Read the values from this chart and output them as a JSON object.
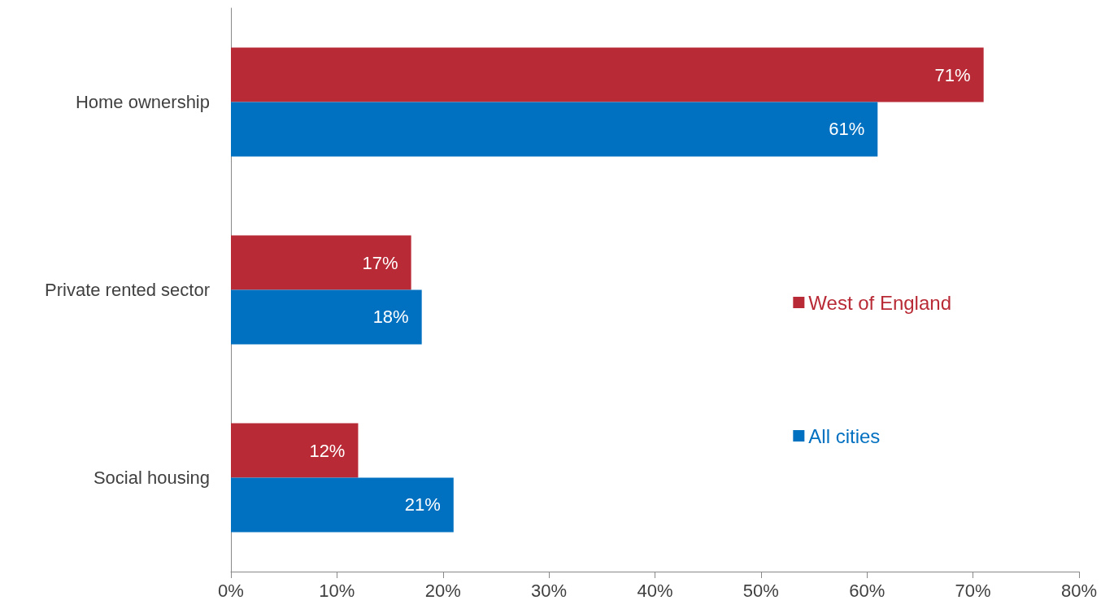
{
  "chart_data": {
    "type": "bar",
    "orientation": "horizontal",
    "categories": [
      "Home ownership",
      "Private rented sector",
      "Social housing"
    ],
    "series": [
      {
        "name": "West of England",
        "color": "#b82a35",
        "values": [
          71,
          17,
          12
        ],
        "value_labels": [
          "71%",
          "17%",
          "12%"
        ]
      },
      {
        "name": "All cities",
        "color": "#0070c0",
        "values": [
          61,
          18,
          21
        ],
        "value_labels": [
          "61%",
          "18%",
          "21%"
        ]
      }
    ],
    "xlim": [
      0,
      80
    ],
    "xticks": [
      {
        "value": 0,
        "label": "0%"
      },
      {
        "value": 10,
        "label": "10%"
      },
      {
        "value": 20,
        "label": "20%"
      },
      {
        "value": 30,
        "label": "30%"
      },
      {
        "value": 40,
        "label": "40%"
      },
      {
        "value": 50,
        "label": "50%"
      },
      {
        "value": 60,
        "label": "60%"
      },
      {
        "value": 70,
        "label": "70%"
      },
      {
        "value": 80,
        "label": "80%"
      }
    ],
    "grid": false,
    "legend": "right"
  }
}
